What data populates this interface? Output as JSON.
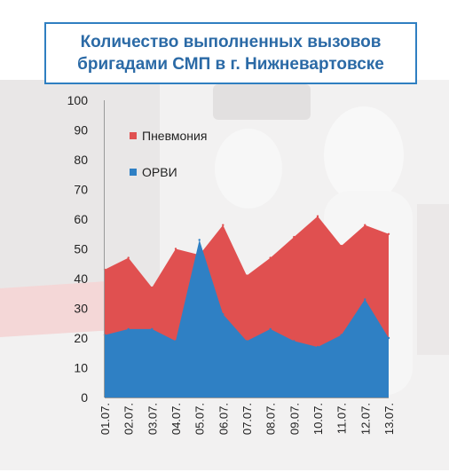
{
  "title": {
    "line1": "Количество выполненных вызовов",
    "line2": "бригадами СМП в г. Нижневартовске"
  },
  "colors": {
    "series_top": "#e05050",
    "series_bottom": "#2f80c4",
    "title_text": "#2b6aa6",
    "title_border": "#2f7fc1"
  },
  "chart_data": {
    "type": "area",
    "stacked": false,
    "categories": [
      "01.07.",
      "02.07.",
      "03.07.",
      "04.07.",
      "05.07.",
      "06.07.",
      "07.07.",
      "08.07.",
      "09.07.",
      "10.07.",
      "11.07.",
      "12.07.",
      "13.07."
    ],
    "series": [
      {
        "name": "Пневмония",
        "values": [
          43,
          47,
          37,
          50,
          48,
          58,
          41,
          47,
          54,
          61,
          51,
          58,
          55
        ]
      },
      {
        "name": "ОРВИ",
        "values": [
          21,
          23,
          23,
          19,
          53,
          28,
          19,
          23,
          19,
          17,
          21,
          33,
          20
        ]
      }
    ],
    "ylim": [
      0,
      100
    ],
    "yticks": [
      0,
      10,
      20,
      30,
      40,
      50,
      60,
      70,
      80,
      90,
      100
    ],
    "xlabel": "",
    "ylabel": "",
    "legend_position": "top-left",
    "grid": false
  }
}
